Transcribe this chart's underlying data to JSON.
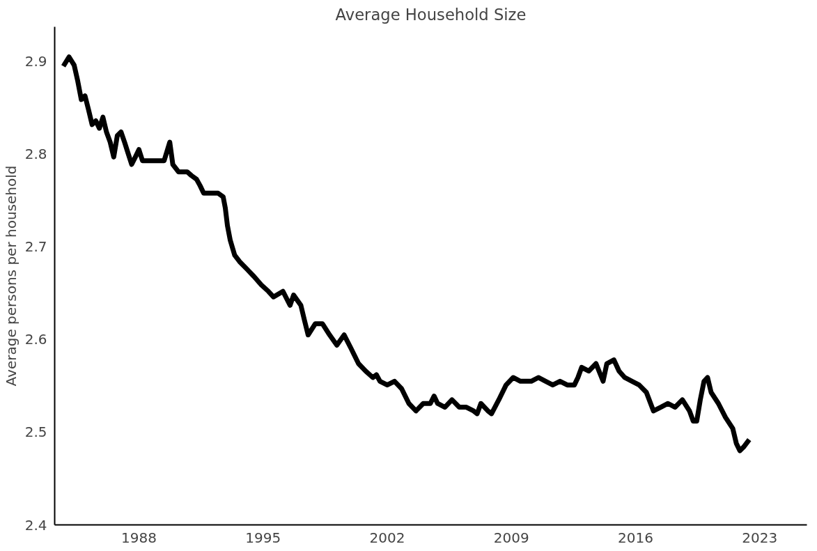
{
  "chart_data": {
    "type": "line",
    "title": "Average Household Size",
    "ylabel": "Average persons per household",
    "x": [
      1983.74,
      1984.06,
      1984.35,
      1984.55,
      1984.75,
      1984.96,
      1985.16,
      1985.36,
      1985.57,
      1985.77,
      1985.97,
      1986.17,
      1986.38,
      1986.58,
      1986.78,
      1986.99,
      1987.19,
      1987.39,
      1987.59,
      1987.8,
      1988.0,
      1988.2,
      1988.61,
      1989.01,
      1989.42,
      1989.74,
      1989.91,
      1990.23,
      1990.72,
      1990.96,
      1991.25,
      1991.45,
      1991.65,
      1992.06,
      1992.46,
      1992.75,
      1992.87,
      1992.99,
      1993.15,
      1993.4,
      1993.68,
      1994.09,
      1994.49,
      1994.9,
      1995.3,
      1995.59,
      1996.12,
      1996.52,
      1996.72,
      1997.13,
      1997.33,
      1997.54,
      1997.94,
      1998.35,
      1998.75,
      1999.16,
      1999.57,
      1999.97,
      2000.38,
      2000.78,
      2001.19,
      2001.39,
      2001.59,
      2002.0,
      2002.41,
      2002.81,
      2003.22,
      2003.62,
      2004.03,
      2004.43,
      2004.64,
      2004.84,
      2005.25,
      2005.65,
      2006.06,
      2006.46,
      2006.87,
      2007.07,
      2007.28,
      2007.68,
      2007.88,
      2008.29,
      2008.7,
      2009.1,
      2009.51,
      2010.12,
      2010.52,
      2010.93,
      2011.33,
      2011.74,
      2012.15,
      2012.55,
      2012.75,
      2012.96,
      2013.36,
      2013.77,
      2014.17,
      2014.38,
      2014.78,
      2015.07,
      2015.39,
      2015.8,
      2016.2,
      2016.61,
      2017.01,
      2017.42,
      2017.83,
      2018.23,
      2018.64,
      2019.04,
      2019.25,
      2019.45,
      2019.65,
      2019.86,
      2020.06,
      2020.26,
      2020.67,
      2021.07,
      2021.48,
      2021.68,
      2021.88,
      2022.09,
      2022.41
    ],
    "series": [
      {
        "color": "#000000",
        "values": [
          2.895,
          2.905,
          2.896,
          2.879,
          2.859,
          2.863,
          2.848,
          2.832,
          2.836,
          2.828,
          2.84,
          2.824,
          2.813,
          2.797,
          2.82,
          2.824,
          2.813,
          2.801,
          2.789,
          2.797,
          2.805,
          2.793,
          2.793,
          2.793,
          2.793,
          2.813,
          2.789,
          2.781,
          2.781,
          2.777,
          2.773,
          2.766,
          2.758,
          2.758,
          2.758,
          2.754,
          2.742,
          2.723,
          2.707,
          2.691,
          2.684,
          2.676,
          2.668,
          2.659,
          2.652,
          2.646,
          2.652,
          2.637,
          2.648,
          2.637,
          2.621,
          2.605,
          2.617,
          2.617,
          2.605,
          2.594,
          2.605,
          2.59,
          2.574,
          2.566,
          2.559,
          2.562,
          2.555,
          2.551,
          2.555,
          2.547,
          2.531,
          2.523,
          2.531,
          2.531,
          2.539,
          2.531,
          2.527,
          2.535,
          2.527,
          2.527,
          2.523,
          2.52,
          2.531,
          2.523,
          2.52,
          2.535,
          2.551,
          2.559,
          2.555,
          2.555,
          2.559,
          2.555,
          2.551,
          2.555,
          2.551,
          2.551,
          2.559,
          2.57,
          2.566,
          2.574,
          2.555,
          2.574,
          2.578,
          2.566,
          2.559,
          2.555,
          2.551,
          2.543,
          2.523,
          2.527,
          2.531,
          2.527,
          2.535,
          2.523,
          2.512,
          2.512,
          2.535,
          2.555,
          2.559,
          2.543,
          2.531,
          2.516,
          2.504,
          2.488,
          2.48,
          2.484,
          2.492
        ]
      }
    ],
    "xlim": [
      1983.25,
      2025.66
    ],
    "xticks": [
      1988,
      1995,
      2002,
      2009,
      2016,
      2023
    ],
    "ylim": [
      2.4,
      2.9375
    ],
    "yticks": [
      2.4,
      2.5,
      2.6,
      2.7,
      2.8,
      2.9
    ],
    "grid": false,
    "marker": "none",
    "line_style": "solid"
  }
}
